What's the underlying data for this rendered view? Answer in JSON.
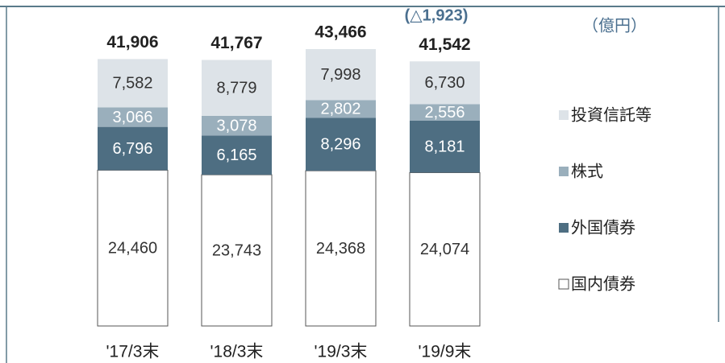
{
  "chart_data": {
    "type": "stacked-bar",
    "unit_label": "（億円）",
    "annotation": "(△1,923)",
    "categories": [
      "'17/3末",
      "'18/3末",
      "'19/3末",
      "'19/9末"
    ],
    "series": [
      {
        "name": "国内債券",
        "color": "#ffffff",
        "values": [
          24460,
          23743,
          24368,
          24074
        ],
        "value_labels": [
          "24,460",
          "23,743",
          "24,368",
          "24,074"
        ]
      },
      {
        "name": "外国債券",
        "color": "#4e6e82",
        "values": [
          6796,
          6165,
          8296,
          8181
        ],
        "value_labels": [
          "6,796",
          "6,165",
          "8,296",
          "8,181"
        ]
      },
      {
        "name": "株式",
        "color": "#9aafbc",
        "values": [
          3066,
          3078,
          2802,
          2556
        ],
        "value_labels": [
          "3,066",
          "3,078",
          "2,802",
          "2,556"
        ]
      },
      {
        "name": "投資信託等",
        "color": "#dde3e8",
        "values": [
          7582,
          8779,
          7998,
          6730
        ],
        "value_labels": [
          "7,582",
          "8,779",
          "7,998",
          "6,730"
        ]
      }
    ],
    "totals": {
      "values": [
        41906,
        41767,
        43466,
        41542
      ],
      "value_labels": [
        "41,906",
        "41,767",
        "43,466",
        "41,542"
      ]
    }
  }
}
